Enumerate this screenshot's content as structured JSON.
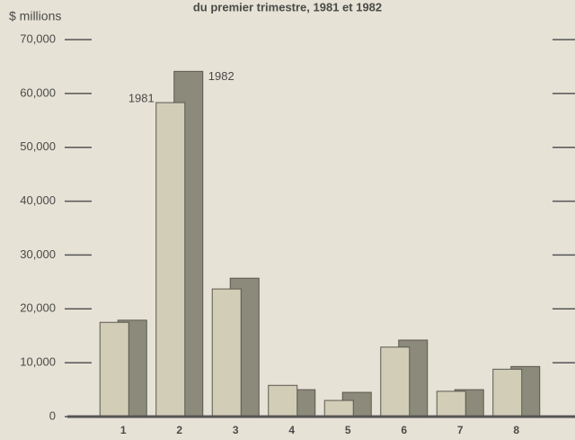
{
  "chart_data": {
    "type": "bar",
    "title": "du premier trimestre, 1981 et 1982",
    "y_label": "$ millions",
    "categories": [
      "1",
      "2",
      "3",
      "4",
      "5",
      "6",
      "7",
      "8"
    ],
    "series": [
      {
        "name": "1981",
        "color": "#d2cdb6",
        "values": [
          17500,
          58300,
          23700,
          5800,
          3000,
          12900,
          4700,
          8800
        ]
      },
      {
        "name": "1982",
        "color": "#8c8a7a",
        "values": [
          17900,
          64100,
          25700,
          5000,
          4500,
          14200,
          5000,
          9300
        ]
      }
    ],
    "ylim": [
      0,
      70000
    ],
    "yticks": [
      0,
      {
        "value": 10000,
        "label": "10,000"
      },
      {
        "value": 20000,
        "label": "20,000"
      },
      {
        "value": 30000,
        "label": "30,000"
      },
      {
        "value": 40000,
        "label": "40,000"
      },
      {
        "value": 50000,
        "label": "50,000"
      },
      {
        "value": 60000,
        "label": "60,000"
      },
      {
        "value": 70000,
        "label": "70,000"
      }
    ]
  }
}
